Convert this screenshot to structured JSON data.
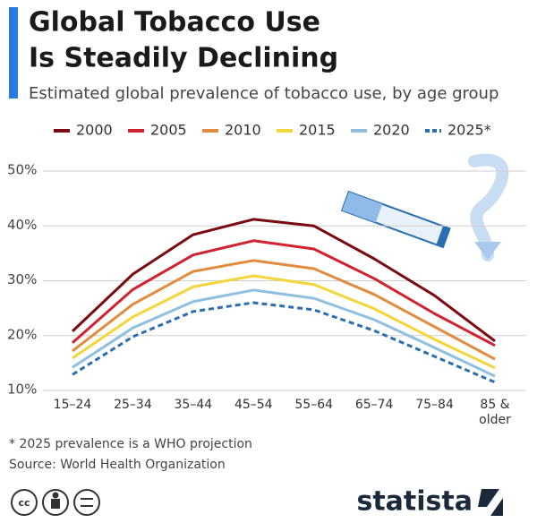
{
  "chart_data": {
    "type": "line",
    "title": [
      "Global Tobacco Use",
      "Is Steadily Declining"
    ],
    "subtitle": "Estimated global prevalence of tobacco use, by age group",
    "categories": [
      "15–24",
      "25–34",
      "35–44",
      "45–54",
      "55–64",
      "65–74",
      "75–84",
      "85 & older"
    ],
    "series": [
      {
        "name": "2000",
        "color": "#7a0a12",
        "values": [
          20.8,
          31.2,
          38.4,
          41.2,
          40.0,
          34.0,
          27.3,
          19.0
        ]
      },
      {
        "name": "2005",
        "color": "#d0222f",
        "values": [
          18.7,
          28.4,
          34.7,
          37.3,
          35.8,
          30.4,
          24.0,
          18.2
        ]
      },
      {
        "name": "2010",
        "color": "#e08b3d",
        "values": [
          17.2,
          25.7,
          31.7,
          33.7,
          32.2,
          27.5,
          21.6,
          15.7
        ]
      },
      {
        "name": "2015",
        "color": "#f3d53c",
        "values": [
          15.9,
          23.4,
          28.9,
          30.9,
          29.3,
          24.9,
          19.3,
          14.1
        ]
      },
      {
        "name": "2020",
        "color": "#8fc0e2",
        "values": [
          14.2,
          21.4,
          26.2,
          28.3,
          26.8,
          22.9,
          17.8,
          12.6
        ]
      },
      {
        "name": "2025*",
        "color": "#2a6db0",
        "dashed": true,
        "values": [
          12.9,
          19.8,
          24.4,
          26.0,
          24.7,
          20.9,
          16.2,
          11.5
        ]
      }
    ],
    "ylim": [
      10,
      50
    ],
    "yticks": [
      {
        "value": 10,
        "label": "10%"
      },
      {
        "value": 20,
        "label": "20%"
      },
      {
        "value": 30,
        "label": "30%"
      },
      {
        "value": 40,
        "label": "40%"
      },
      {
        "value": 50,
        "label": "50%"
      }
    ],
    "grid": true,
    "footnote": "* 2025 prevalence is a WHO projection",
    "source": "Source: World Health Organization",
    "brand": "statista"
  }
}
